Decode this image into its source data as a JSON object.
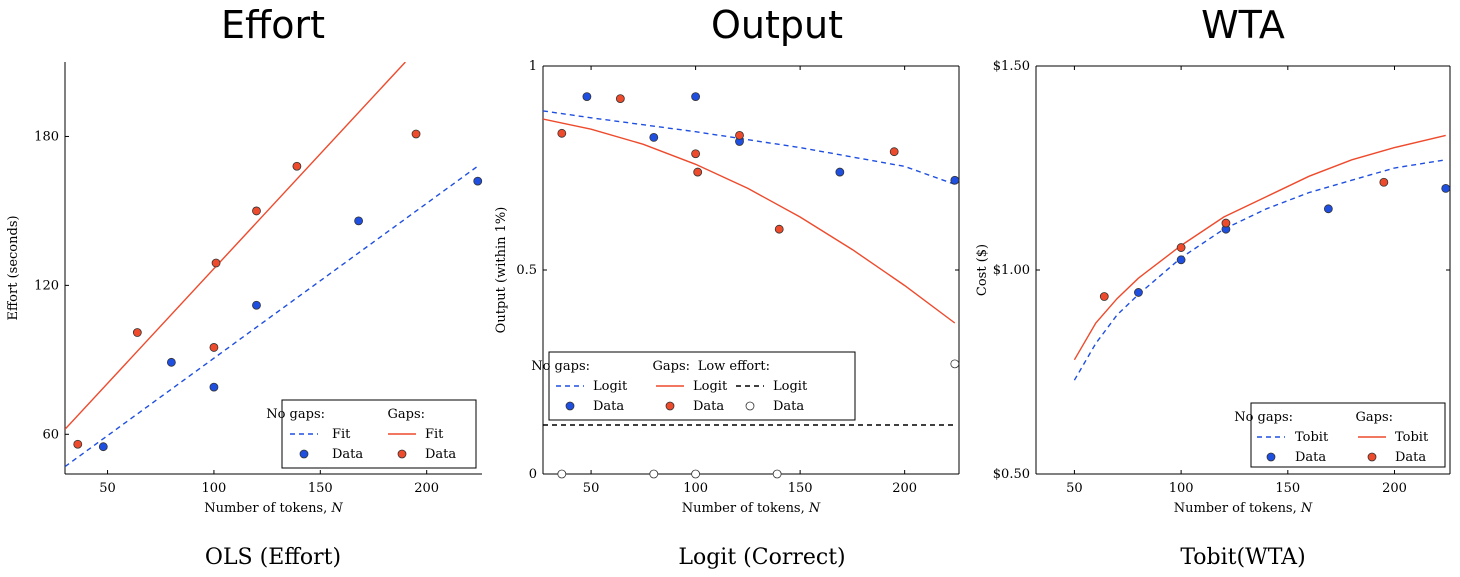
{
  "chart_data": [
    {
      "type": "scatter",
      "title": "Effort",
      "caption": "OLS (Effort)",
      "xlabel": "Number of tokens, ",
      "xlabel_var": "N",
      "ylabel": "Effort (seconds)",
      "xlim": [
        30,
        226
      ],
      "ylim": [
        44,
        210
      ],
      "xticks": [
        50,
        100,
        150,
        200
      ],
      "yticks": [
        60,
        120,
        180
      ],
      "ytick_labels": [
        "60",
        "120",
        "180"
      ],
      "legend_position": "bottom-right",
      "legend": {
        "headers": [
          "No gaps:",
          "Gaps:"
        ],
        "rows": [
          {
            "label": "Fit",
            "kind": "line"
          },
          {
            "label": "Data",
            "kind": "marker"
          }
        ]
      },
      "series": [
        {
          "name": "No gaps",
          "color": "#1f4fe0",
          "dash": "dashed",
          "fit": {
            "x": [
              30,
              224
            ],
            "y": [
              47,
              168
            ]
          },
          "points": {
            "x": [
              48,
              80,
              100,
              120,
              168,
              224
            ],
            "y": [
              55,
              89,
              79,
              112,
              146,
              162
            ]
          }
        },
        {
          "name": "Gaps",
          "color": "#ee4a2c",
          "dash": "solid",
          "fit": {
            "x": [
              30,
              190
            ],
            "y": [
              62,
              210
            ]
          },
          "points": {
            "x": [
              36,
              64,
              100,
              101,
              120,
              139,
              195
            ],
            "y": [
              56,
              101,
              95,
              129,
              150,
              168,
              181
            ]
          }
        }
      ]
    },
    {
      "type": "scatter",
      "title": "Output",
      "caption": "Logit (Correct)",
      "xlabel": "Number of tokens, ",
      "xlabel_var": "N",
      "ylabel": "Output (within 1%)",
      "xlim": [
        27,
        226
      ],
      "ylim": [
        0,
        1
      ],
      "xticks": [
        50,
        100,
        150,
        200
      ],
      "yticks": [
        0,
        0.5,
        1
      ],
      "ytick_labels": [
        "0",
        "0.5",
        "1"
      ],
      "legend_position": "lower-left",
      "legend": {
        "headers": [
          "No gaps:",
          "Gaps:",
          "Low effort:"
        ],
        "rows": [
          {
            "label": "Logit",
            "kind": "line"
          },
          {
            "label": "Data",
            "kind": "marker"
          }
        ]
      },
      "series": [
        {
          "name": "No gaps",
          "color": "#1f4fe0",
          "dash": "dashed",
          "fit": {
            "x": [
              27,
              50,
              100,
              150,
              200,
              224
            ],
            "y": [
              0.89,
              0.873,
              0.839,
              0.8,
              0.754,
              0.71
            ]
          },
          "points": {
            "x": [
              48,
              80,
              100,
              121,
              169,
              224
            ],
            "y": [
              0.925,
              0.825,
              0.925,
              0.815,
              0.74,
              0.72
            ]
          }
        },
        {
          "name": "Gaps",
          "color": "#ee4a2c",
          "dash": "solid",
          "fit": {
            "x": [
              27,
              50,
              75,
              100,
              125,
              150,
              175,
              200,
              224
            ],
            "y": [
              0.87,
              0.845,
              0.808,
              0.759,
              0.7,
              0.63,
              0.55,
              0.462,
              0.37
            ]
          },
          "points": {
            "x": [
              36,
              64,
              100,
              101,
              121,
              140,
              195
            ],
            "y": [
              0.835,
              0.92,
              0.785,
              0.74,
              0.83,
              0.6,
              0.79
            ]
          }
        },
        {
          "name": "Low effort",
          "color": "#000000",
          "dash": "dashed",
          "hollow": true,
          "fit": {
            "x": [
              27,
              224
            ],
            "y": [
              0.12,
              0.12
            ]
          },
          "points": {
            "x": [
              36,
              80,
              100,
              139,
              224
            ],
            "y": [
              0,
              0,
              0,
              0,
              0.27
            ]
          }
        }
      ]
    },
    {
      "type": "scatter",
      "title": "WTA",
      "caption": "Tobit(WTA)",
      "xlabel": "Number of tokens, ",
      "xlabel_var": "N",
      "ylabel": "Cost ($)",
      "xlim": [
        32,
        226
      ],
      "ylim": [
        0.5,
        1.5
      ],
      "xticks": [
        50,
        100,
        150,
        200
      ],
      "yticks": [
        0.5,
        1.0,
        1.5
      ],
      "ytick_labels": [
        "$0.50",
        "$1.00",
        "$1.50"
      ],
      "legend_position": "bottom-right",
      "legend": {
        "headers": [
          "No gaps:",
          "Gaps:"
        ],
        "rows": [
          {
            "label": "Tobit",
            "kind": "line"
          },
          {
            "label": "Data",
            "kind": "marker"
          }
        ]
      },
      "series": [
        {
          "name": "No gaps",
          "color": "#1f4fe0",
          "dash": "dashed",
          "fit": {
            "x": [
              50,
              60,
              70,
              80,
              100,
              120,
              140,
              160,
              180,
              200,
              224
            ],
            "y": [
              0.73,
              0.82,
              0.89,
              0.94,
              1.03,
              1.1,
              1.15,
              1.19,
              1.22,
              1.25,
              1.27
            ]
          },
          "points": {
            "x": [
              80,
              100,
              121,
              169,
              224
            ],
            "y": [
              0.945,
              1.025,
              1.1,
              1.15,
              1.2
            ]
          }
        },
        {
          "name": "Gaps",
          "color": "#ee4a2c",
          "dash": "solid",
          "fit": {
            "x": [
              50,
              60,
              70,
              80,
              100,
              120,
              140,
              160,
              180,
              200,
              224
            ],
            "y": [
              0.78,
              0.87,
              0.93,
              0.98,
              1.06,
              1.13,
              1.18,
              1.23,
              1.27,
              1.3,
              1.33
            ]
          },
          "points": {
            "x": [
              64,
              100,
              121,
              195
            ],
            "y": [
              0.935,
              1.055,
              1.115,
              1.215
            ]
          }
        }
      ]
    }
  ]
}
